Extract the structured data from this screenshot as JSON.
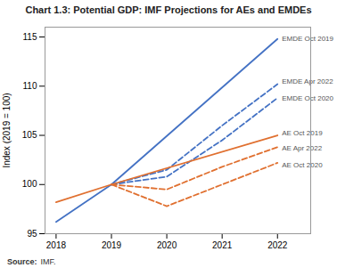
{
  "chart_data": {
    "type": "line",
    "title": "Chart 1.3:  Potential GDP: IMF Projections for AEs and EMDEs",
    "ylabel": "Index (2019 = 100)",
    "source_label": "Source:",
    "source_text": "IMF.",
    "xlim": [
      2017.8,
      2022.6
    ],
    "xticks": [
      2018,
      2019,
      2020,
      2021,
      2022
    ],
    "ylim": [
      95,
      116
    ],
    "yticks": [
      95,
      100,
      105,
      110,
      115
    ],
    "grid": false,
    "series": [
      {
        "name": "EMDE Oct 2019",
        "color": "#4472C4",
        "line_style": "solid",
        "x": [
          2018,
          2019,
          2022
        ],
        "values": [
          96.2,
          100.0,
          114.8
        ]
      },
      {
        "name": "EMDE Apr 2022",
        "color": "#4472C4",
        "line_style": "dashed",
        "x": [
          2019,
          2020,
          2021,
          2022
        ],
        "values": [
          100.0,
          101.5,
          106.0,
          110.2
        ]
      },
      {
        "name": "EMDE Oct 2020",
        "color": "#4472C4",
        "line_style": "dashed",
        "x": [
          2019,
          2020,
          2021,
          2022
        ],
        "values": [
          100.0,
          100.8,
          104.5,
          108.8
        ]
      },
      {
        "name": "AE Oct 2019",
        "color": "#E07030",
        "line_style": "solid",
        "x": [
          2018,
          2019,
          2022
        ],
        "values": [
          98.2,
          100.0,
          105.0
        ]
      },
      {
        "name": "AE Apr 2022",
        "color": "#E07030",
        "line_style": "dashed",
        "x": [
          2019,
          2020,
          2021,
          2022
        ],
        "values": [
          100.0,
          99.5,
          101.8,
          103.8
        ]
      },
      {
        "name": "AE Oct 2020",
        "color": "#E07030",
        "line_style": "dashed",
        "x": [
          2019,
          2020,
          2021,
          2022
        ],
        "values": [
          100.0,
          97.8,
          100.0,
          102.2
        ]
      }
    ],
    "annotations": [
      {
        "text": "EMDE Oct 2019",
        "x": 2022.08,
        "y": 114.8,
        "color": "#555555"
      },
      {
        "text": "EMDE Apr 2022",
        "x": 2022.08,
        "y": 110.5,
        "color": "#555555"
      },
      {
        "text": "EMDE Oct 2020",
        "x": 2022.08,
        "y": 108.8,
        "color": "#555555"
      },
      {
        "text": "AE Oct 2019",
        "x": 2022.08,
        "y": 105.2,
        "color": "#555555"
      },
      {
        "text": "AE Apr 2022",
        "x": 2022.08,
        "y": 103.7,
        "color": "#555555"
      },
      {
        "text": "AE Oct 2020",
        "x": 2022.08,
        "y": 102.0,
        "color": "#555555"
      }
    ]
  }
}
